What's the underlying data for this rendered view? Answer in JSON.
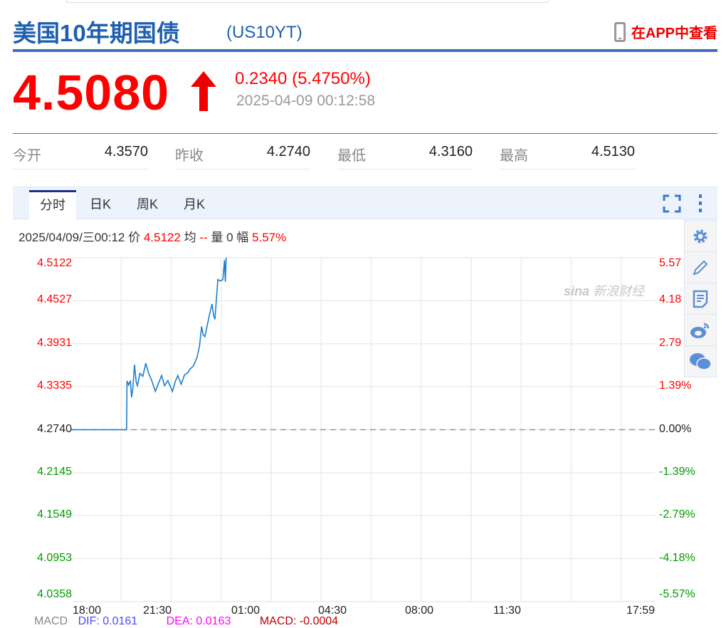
{
  "header": {
    "title": "美国10年期国债",
    "code": "(US10YT)",
    "app_link": "在APP中查看",
    "app_icon": "phone-icon"
  },
  "quote": {
    "price": "4.5080",
    "direction": "up",
    "change": "0.2340 (5.4750%)",
    "timestamp": "2025-04-09 00:12:58"
  },
  "stats": [
    {
      "label": "今开",
      "value": "4.3570"
    },
    {
      "label": "昨收",
      "value": "4.2740"
    },
    {
      "label": "最低",
      "value": "4.3160"
    },
    {
      "label": "最高",
      "value": "4.5130"
    }
  ],
  "tabs": [
    {
      "label": "分时",
      "active": true
    },
    {
      "label": "日K"
    },
    {
      "label": "周K"
    },
    {
      "label": "月K"
    }
  ],
  "info": {
    "datetime": "2025/04/09/三00:12",
    "price_label": "价",
    "price": "4.5122",
    "avg_label": "均",
    "avg": "--",
    "vol_label": "量",
    "vol": "0",
    "amp_label": "幅",
    "amp": "5.57%"
  },
  "side_icons": [
    "gear-icon",
    "pencil-icon",
    "note-icon",
    "weibo-icon",
    "wechat-icon"
  ],
  "watermark": "sina 新浪财经",
  "colors": {
    "up": "#ff0000",
    "down": "#009900",
    "line": "#1a7fd0",
    "title": "#1f5fb0"
  },
  "chart_data": {
    "type": "line",
    "y_ticks": [
      "4.5122",
      "4.4527",
      "4.3931",
      "4.3335",
      "4.2740",
      "4.2145",
      "4.1549",
      "4.0953",
      "4.0358"
    ],
    "pct_ticks": [
      "5.57",
      "4.18",
      "2.79",
      "1.39%",
      "0.00%",
      "-1.39%",
      "-2.79%",
      "-4.18%",
      "-5.57%"
    ],
    "x_ticks": [
      "18:00",
      "21:30",
      "01:00",
      "04:30",
      "08:00",
      "11:30",
      "17:59"
    ],
    "ylim": [
      4.0358,
      4.5122
    ],
    "prev_close": 4.274,
    "points": [
      [
        "18:00",
        4.274
      ],
      [
        "20:13",
        4.274
      ],
      [
        "20:14",
        4.3416
      ],
      [
        "20:18",
        4.336
      ],
      [
        "20:22",
        4.342
      ],
      [
        "20:25",
        4.319
      ],
      [
        "20:28",
        4.331
      ],
      [
        "20:32",
        4.364
      ],
      [
        "20:36",
        4.34
      ],
      [
        "20:39",
        4.335
      ],
      [
        "20:45",
        4.352
      ],
      [
        "20:52",
        4.348
      ],
      [
        "20:59",
        4.366
      ],
      [
        "21:06",
        4.352
      ],
      [
        "21:14",
        4.341
      ],
      [
        "21:22",
        4.327
      ],
      [
        "21:30",
        4.339
      ],
      [
        "21:37",
        4.349
      ],
      [
        "21:44",
        4.335
      ],
      [
        "21:52",
        4.342
      ],
      [
        "22:03",
        4.327
      ],
      [
        "22:10",
        4.341
      ],
      [
        "22:16",
        4.349
      ],
      [
        "22:24",
        4.337
      ],
      [
        "22:32",
        4.35
      ],
      [
        "22:40",
        4.353
      ],
      [
        "22:45",
        4.358
      ],
      [
        "22:53",
        4.362
      ],
      [
        "23:02",
        4.374
      ],
      [
        "23:08",
        4.39
      ],
      [
        "23:13",
        4.417
      ],
      [
        "23:17",
        4.405
      ],
      [
        "23:21",
        4.403
      ],
      [
        "23:27",
        4.42
      ],
      [
        "23:33",
        4.436
      ],
      [
        "23:38",
        4.448
      ],
      [
        "23:42",
        4.432
      ],
      [
        "23:45",
        4.427
      ],
      [
        "23:52",
        4.482
      ],
      [
        "23:58",
        4.48
      ],
      [
        "00:04",
        4.482
      ],
      [
        "00:08",
        4.509
      ],
      [
        "00:10",
        4.479
      ],
      [
        "00:12",
        4.5122
      ]
    ]
  },
  "macd": {
    "label": "MACD",
    "dif": "DIF: 0.0161",
    "dea": "DEA: 0.0163",
    "macd": "MACD: -0.0004"
  }
}
